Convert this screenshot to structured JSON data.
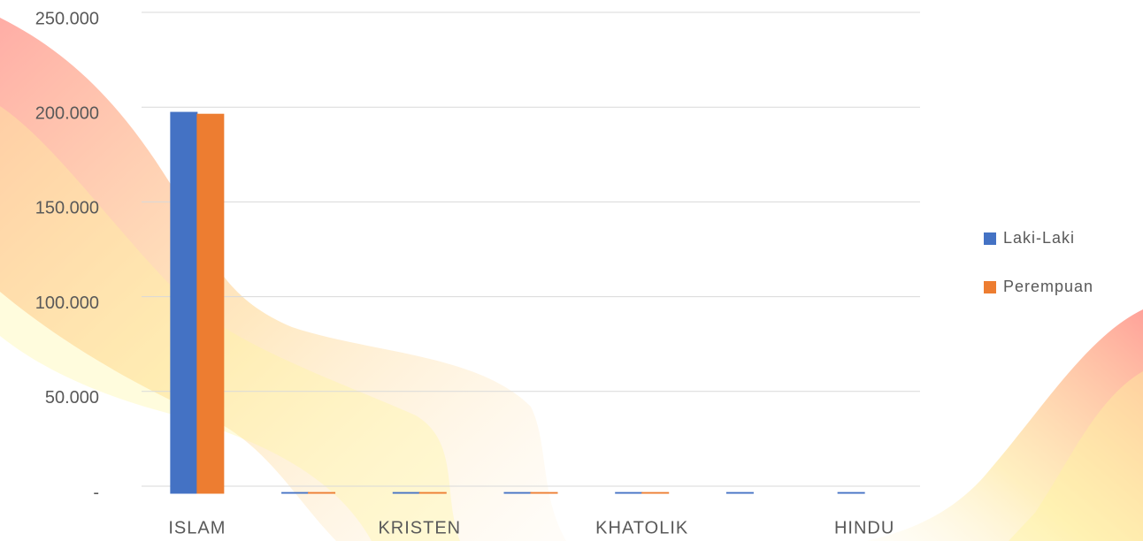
{
  "chart_data": {
    "type": "bar",
    "categories": [
      "ISLAM",
      null,
      "KRISTEN",
      null,
      "KHATOLIK",
      null,
      "HINDU"
    ],
    "series": [
      {
        "name": "Laki-Laki",
        "color": "#4472c4",
        "values": [
          201000,
          400,
          400,
          400,
          400,
          400,
          400
        ]
      },
      {
        "name": "Perempuan",
        "color": "#ed7d31",
        "values": [
          200000,
          400,
          400,
          400,
          400,
          0,
          0
        ]
      }
    ],
    "ylim": [
      0,
      250000
    ],
    "yticks": [
      {
        "value": 0,
        "label": "-"
      },
      {
        "value": 50000,
        "label": "50.000"
      },
      {
        "value": 100000,
        "label": "100.000"
      },
      {
        "value": 150000,
        "label": "150.000"
      },
      {
        "value": 200000,
        "label": "200.000"
      },
      {
        "value": 250000,
        "label": "250.000"
      }
    ],
    "grid": true,
    "legend": "right"
  }
}
